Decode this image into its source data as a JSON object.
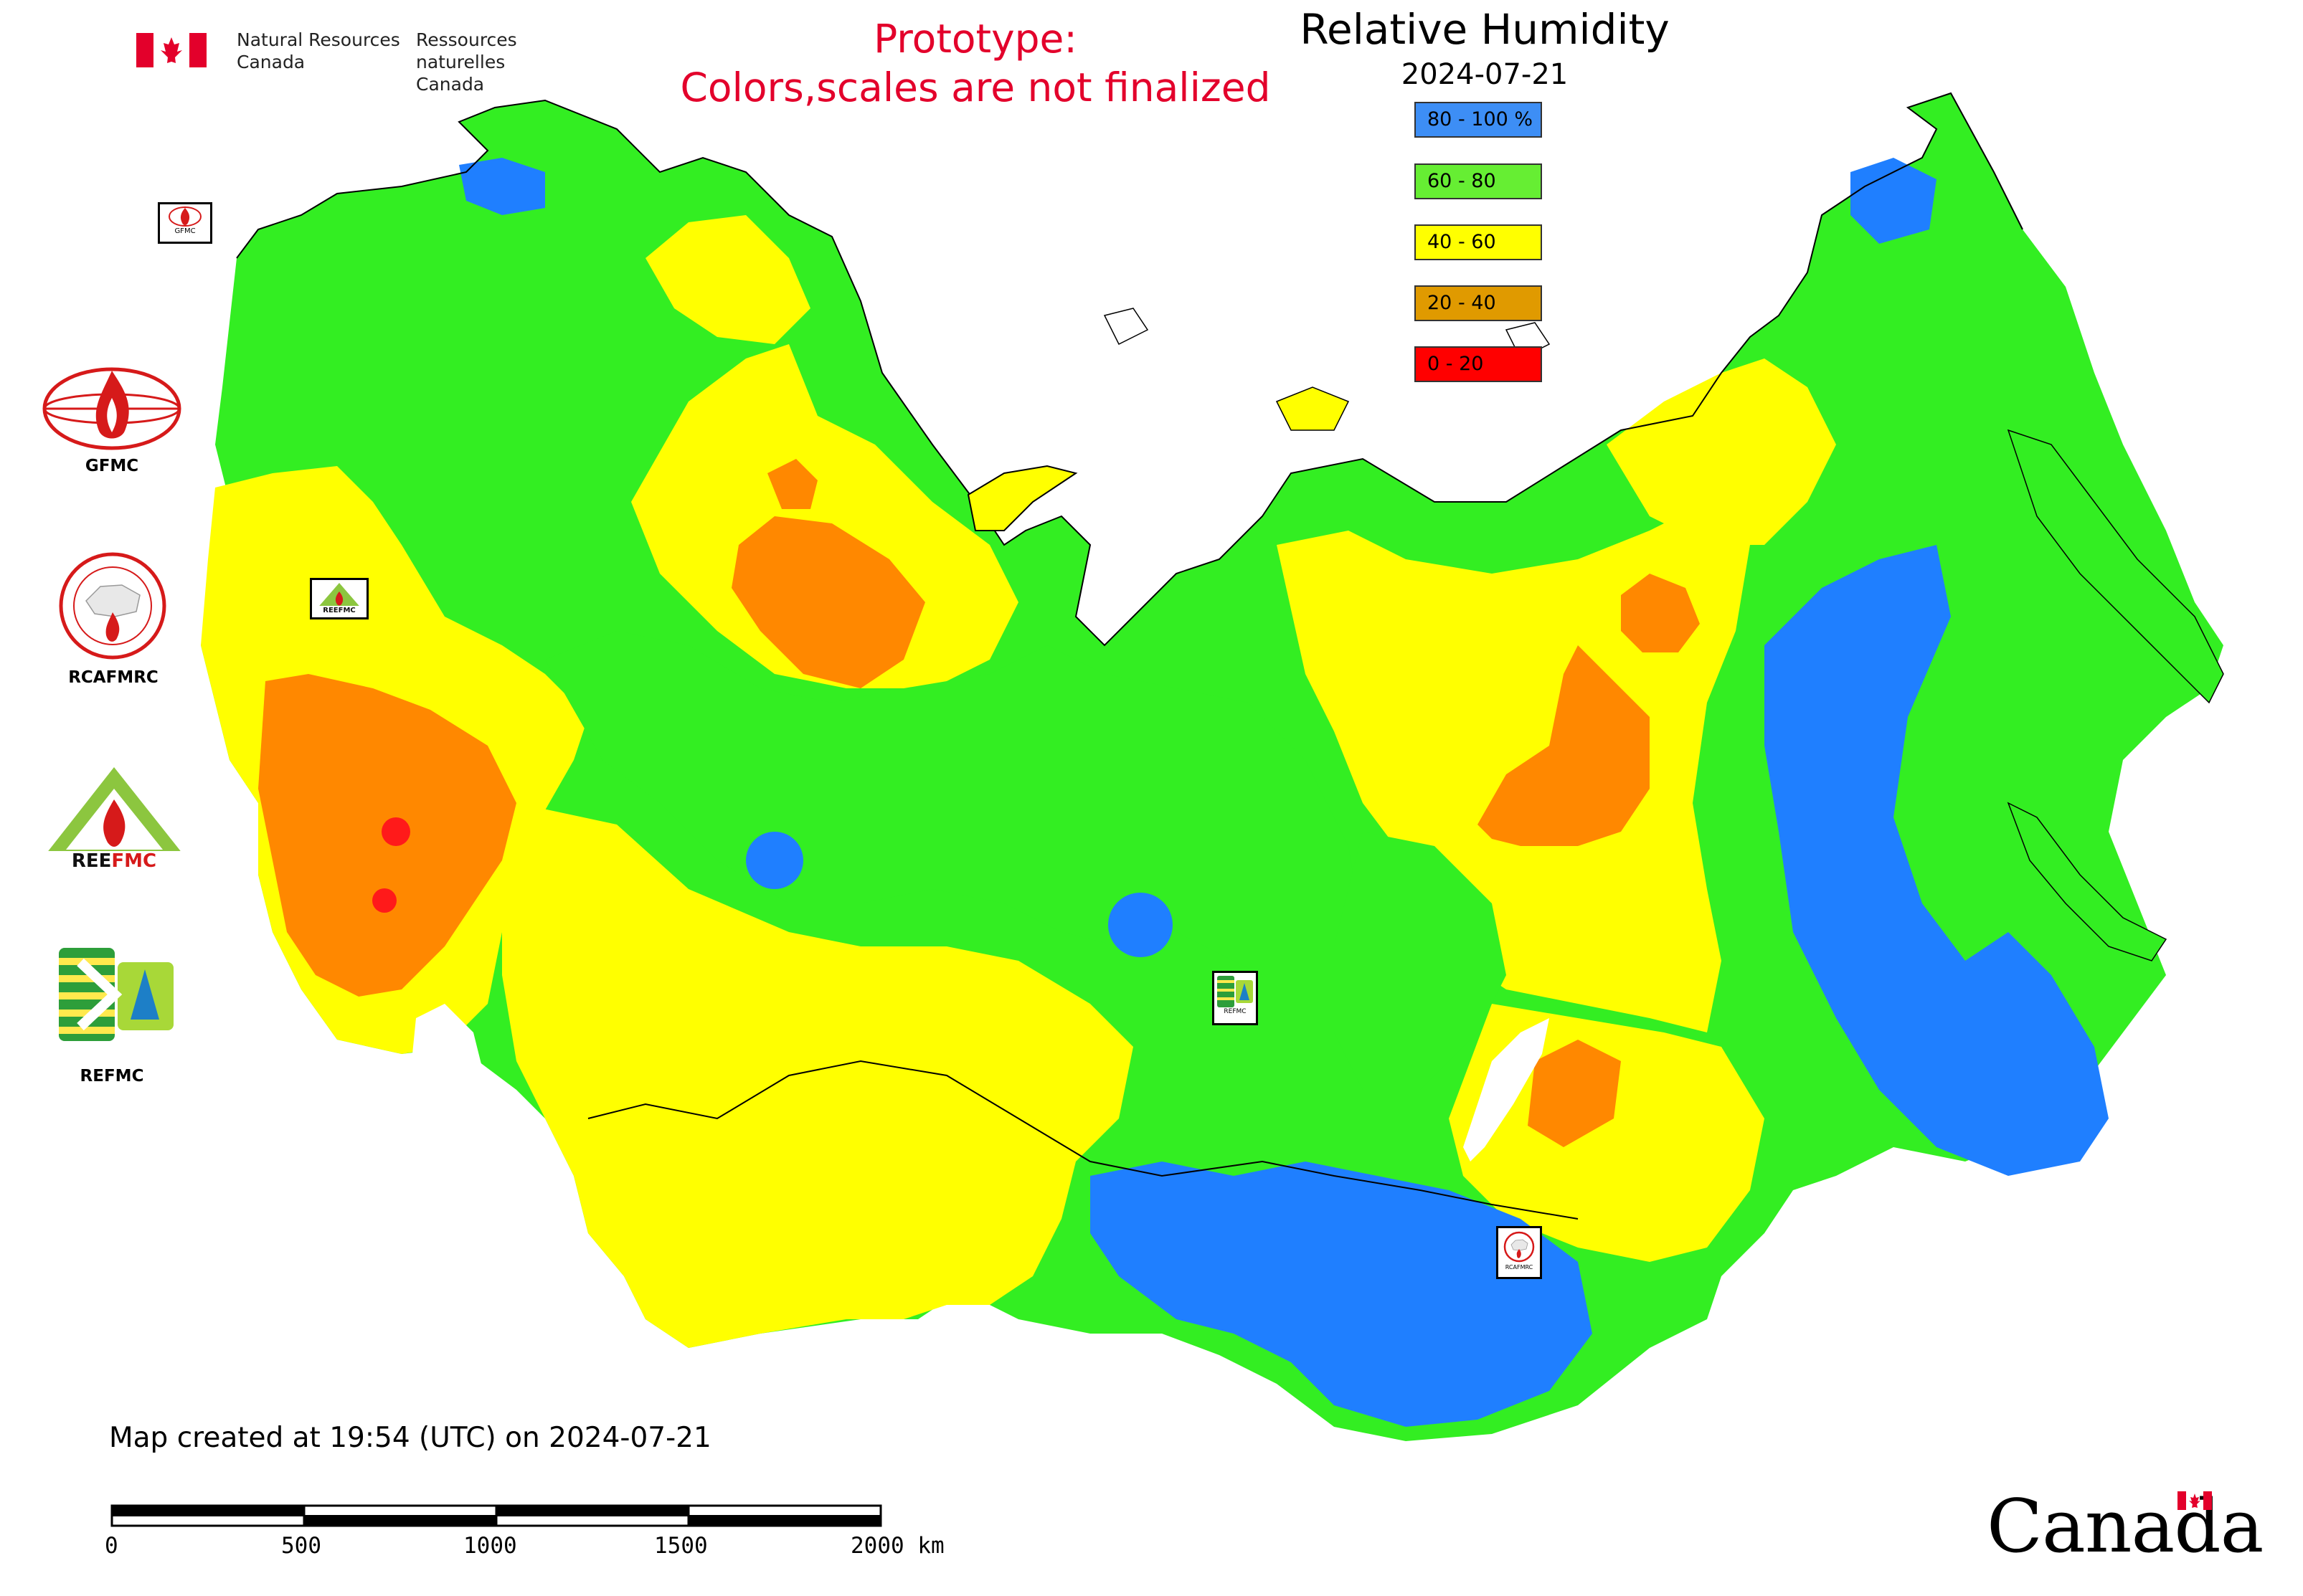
{
  "header": {
    "nrc_en_line1": "Natural Resources",
    "nrc_en_line2": "Canada",
    "nrc_fr_line1": "Ressources naturelles",
    "nrc_fr_line2": "Canada",
    "prototype_line1": "Prototype:",
    "prototype_line2": "Colors,scales are not finalized",
    "title": "Relative Humidity",
    "date": "2024-07-21",
    "flag_icon": "canada-flag-icon"
  },
  "legend": [
    {
      "label": "80 - 100 %",
      "color": "#3d8ef5"
    },
    {
      "label": "60 - 80",
      "color": "#66ee33"
    },
    {
      "label": "40 - 60",
      "color": "#ffff00"
    },
    {
      "label": "20 - 40",
      "color": "#e09a00"
    },
    {
      "label": "0 - 20",
      "color": "#ff0000"
    }
  ],
  "logos": [
    {
      "label": "GFMC",
      "icon": "gfmc-logo"
    },
    {
      "label": "RCAFMRC",
      "icon": "rcafmrc-logo"
    },
    {
      "label": "",
      "icon": "reefmc-logo",
      "wordmark": "REEFMC"
    },
    {
      "label": "REFMC",
      "icon": "refmc-logo"
    }
  ],
  "map_markers": [
    {
      "label": "GFMC",
      "icon": "gfmc-marker"
    },
    {
      "label": "",
      "icon": "reefmc-marker"
    },
    {
      "label": "REFMC",
      "icon": "refmc-marker"
    },
    {
      "label": "RCAFMRC",
      "icon": "rcafmrc-marker"
    }
  ],
  "footer": {
    "created": "Map created at 19:54 (UTC) on 2024-07-21",
    "scale_labels": [
      "0",
      "500",
      "1000",
      "1500",
      "2000 km"
    ],
    "wordmark": "Canada"
  }
}
